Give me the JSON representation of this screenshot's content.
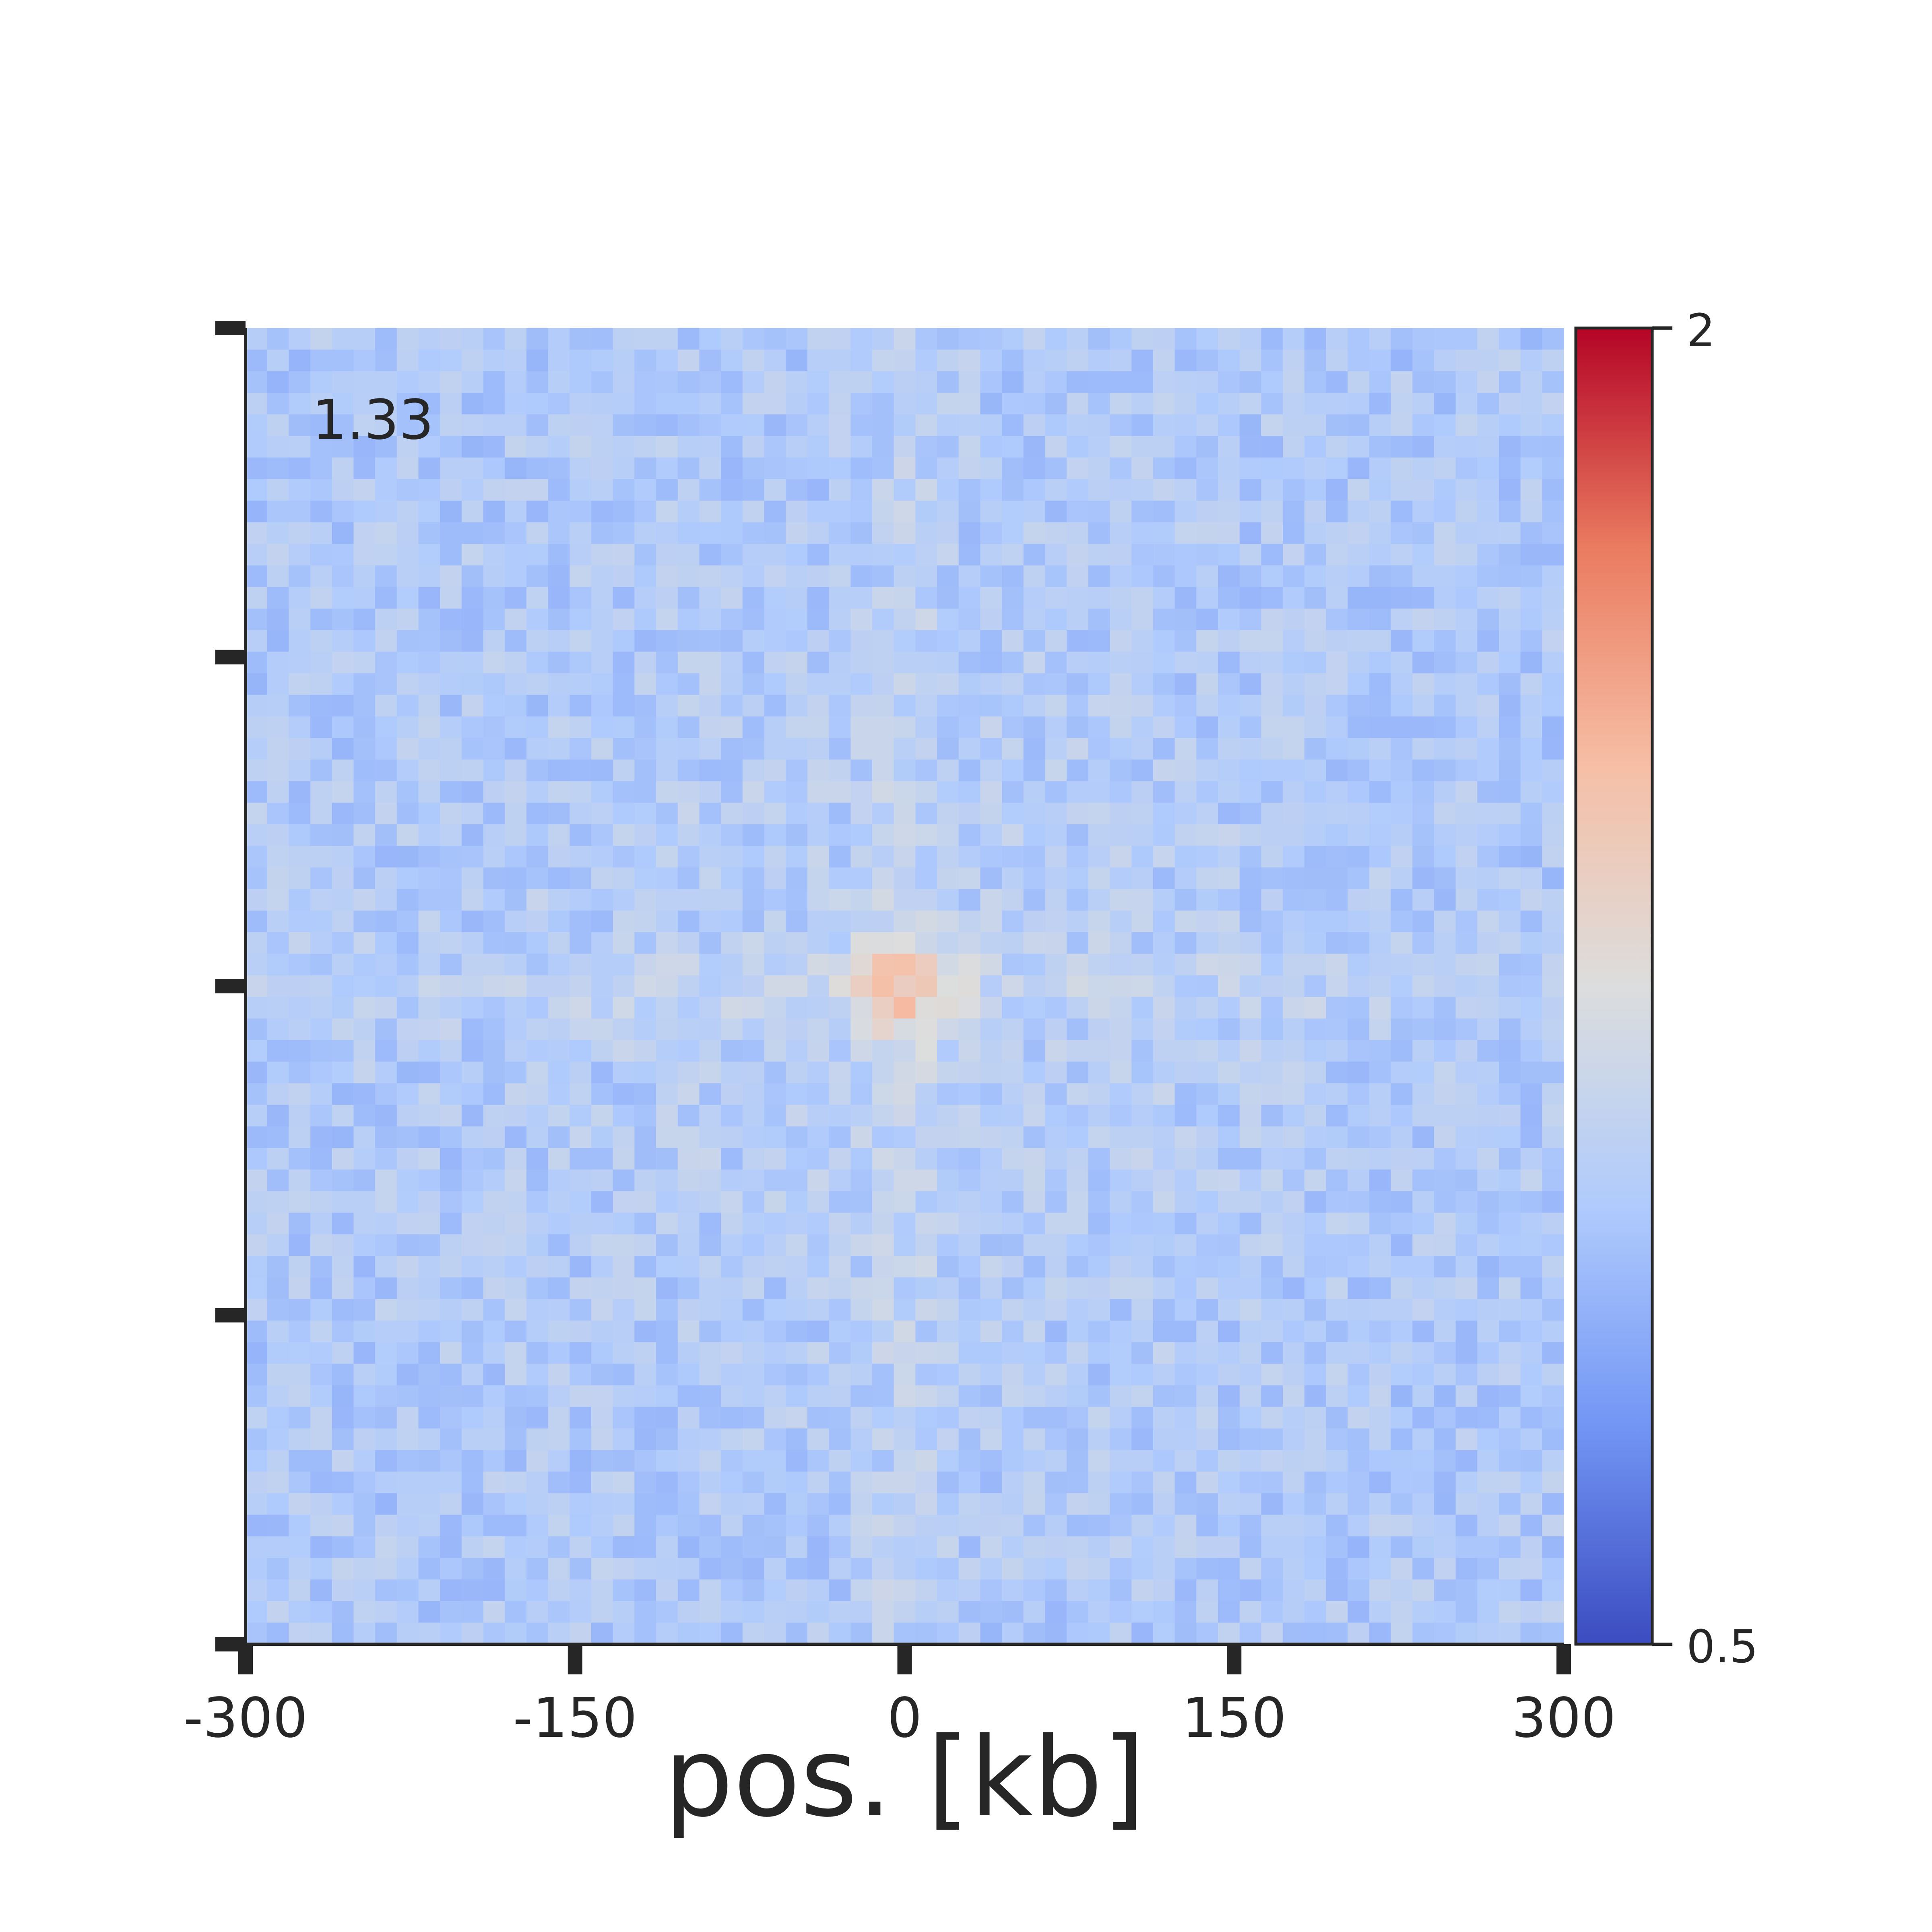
{
  "chart_data": {
    "type": "heatmap",
    "title": "",
    "annotation": "1.33",
    "xlabel": "pos. [kb]",
    "ylabel": "",
    "xlim": [
      -300,
      300
    ],
    "ylim": [
      -300,
      300
    ],
    "xticks": [
      -300,
      -150,
      0,
      150,
      300
    ],
    "xtick_labels": [
      "-300",
      "-150",
      "0",
      "150",
      "300"
    ],
    "yticks": [
      -300,
      -150,
      0,
      150,
      300
    ],
    "ytick_labels": [
      "",
      "",
      "",
      "",
      ""
    ],
    "grid": false,
    "colorbar": {
      "colormap": "coolwarm",
      "vmin": 0.5,
      "vmax": 2,
      "tick_labels": [
        "2",
        "0.5"
      ],
      "colors": [
        "#3b4cc0",
        "#7396f5",
        "#b0cbfc",
        "#dcdddd",
        "#f6bfa6",
        "#ea7b60",
        "#b40426"
      ]
    },
    "matrix": {
      "bins": 61,
      "bin_size_kb": 10,
      "baseline": 1.0,
      "center_peak": 1.33,
      "pattern": "noisy contact map, values ~0.85-1.2, enrichment at centre and along centre row/column stripes"
    }
  }
}
